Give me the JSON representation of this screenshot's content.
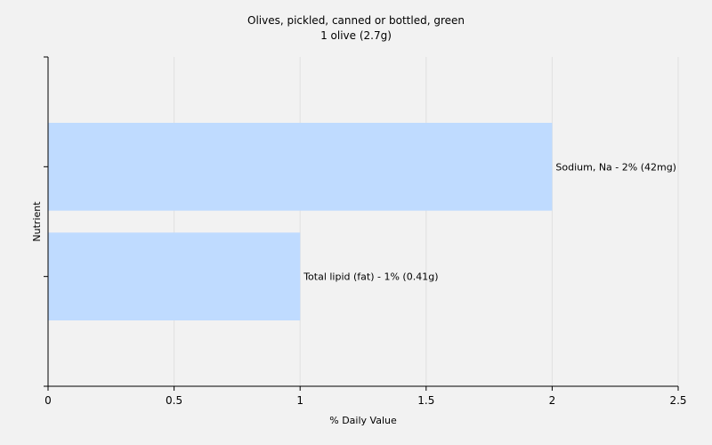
{
  "chart_data": {
    "type": "bar",
    "orientation": "horizontal",
    "title": "Olives, pickled, canned or bottled, green",
    "subtitle": "1 olive (2.7g)",
    "xlabel": "% Daily Value",
    "ylabel": "Nutrient",
    "xlim": [
      0,
      2.5
    ],
    "xticks": [
      "0",
      "0.5",
      "1",
      "1.5",
      "2",
      "2.5"
    ],
    "grid": true,
    "bar_color": "#bfdbff",
    "categories": [
      "Sodium, Na",
      "Total lipid (fat)"
    ],
    "values": [
      2,
      1
    ],
    "bar_labels": [
      "Sodium, Na - 2% (42mg)",
      "Total lipid (fat) - 1% (0.41g)"
    ]
  }
}
